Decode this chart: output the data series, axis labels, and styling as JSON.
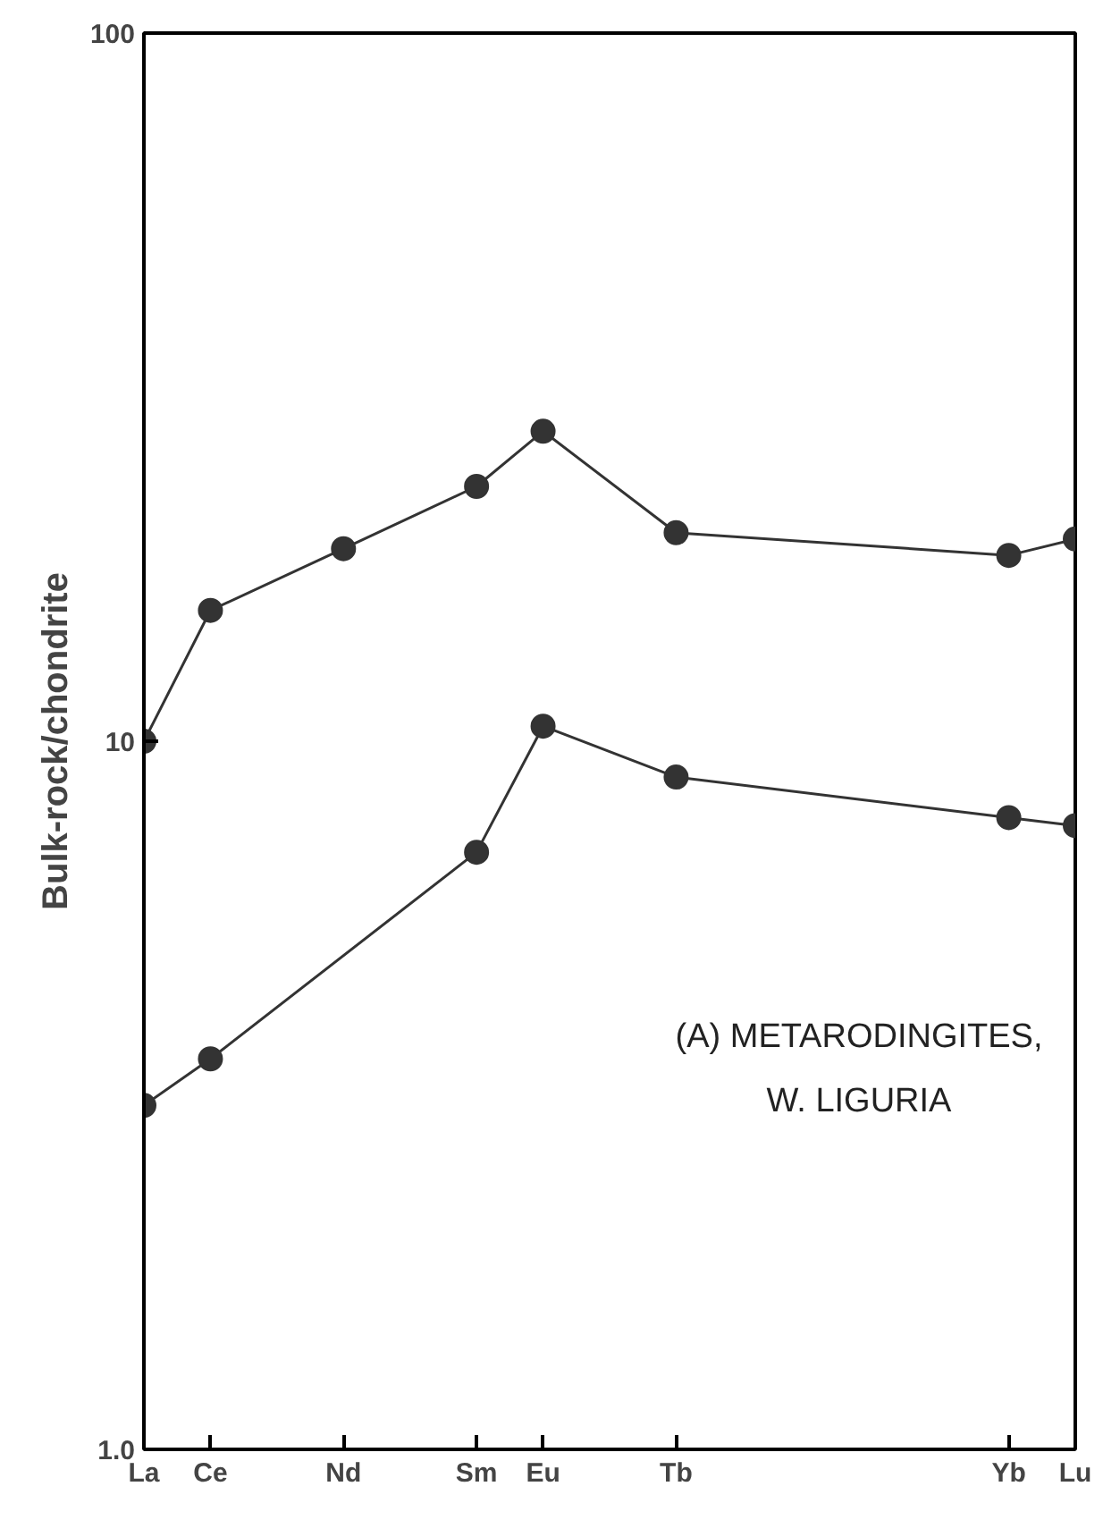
{
  "chart_data": {
    "type": "line",
    "ylabel": "Bulk-rock/chondrite",
    "categories": [
      "La",
      "Ce",
      null,
      "Nd",
      null,
      "Sm",
      "Eu",
      null,
      "Tb",
      null,
      null,
      null,
      null,
      "Yb",
      "Lu"
    ],
    "series": [
      {
        "color": "#333333",
        "values": [
          10,
          15.3,
          null,
          18.7,
          null,
          22.9,
          27.4,
          null,
          19.7,
          null,
          null,
          null,
          null,
          18.3,
          19.3
        ]
      },
      {
        "color": "#333333",
        "values": [
          3.06,
          3.56,
          null,
          null,
          null,
          6.97,
          10.5,
          null,
          8.9,
          null,
          null,
          null,
          null,
          7.8,
          7.6
        ]
      }
    ],
    "ylim": [
      1,
      100
    ],
    "yticks": [
      {
        "value": 1,
        "label": "1.0"
      },
      10,
      100
    ],
    "log": true,
    "grid": false,
    "marker": "circle",
    "line_style": "solid",
    "annotations": [
      "(A) METARODINGITES,",
      "W. LIGURIA"
    ]
  }
}
